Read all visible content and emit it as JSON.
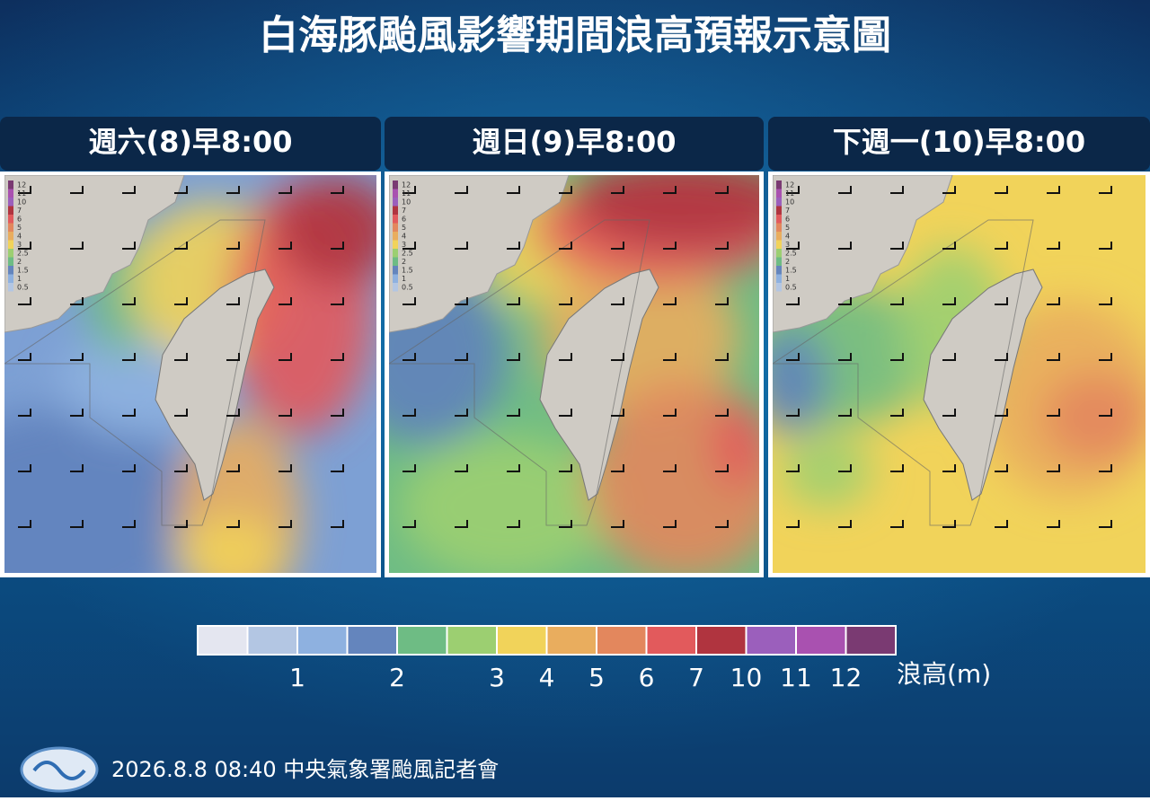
{
  "title": "白海豚颱風影響期間浪高預報示意圖",
  "panels": [
    {
      "title": "週六(8)早8:00"
    },
    {
      "title": "週日(9)早8:00"
    },
    {
      "title": "下週一(10)早8:00"
    }
  ],
  "map_scale_labels": [
    12,
    11,
    10,
    7,
    6,
    5,
    4,
    3,
    2.5,
    2,
    1.5,
    1,
    0.5
  ],
  "legend": {
    "colors": [
      "#e4e6f0",
      "#b3c6e3",
      "#8eb1e0",
      "#6485bd",
      "#6ebc84",
      "#9ccf71",
      "#f1d35a",
      "#e9ad5e",
      "#e3875d",
      "#e25a5c",
      "#b0343f",
      "#9b5fbc",
      "#a951b0",
      "#7a3a72"
    ],
    "ticks": [
      1,
      2,
      3,
      4,
      5,
      6,
      7,
      10,
      11,
      12
    ],
    "unit": "浪高(m)"
  },
  "footer": "2026.8.8  08:40  中央氣象署颱風記者會"
}
